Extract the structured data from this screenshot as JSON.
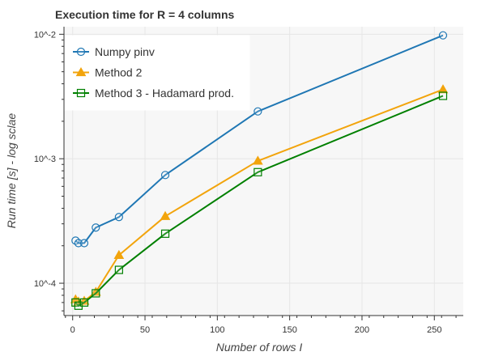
{
  "chart_data": {
    "type": "line",
    "title": "Execution time for R = 4 columns",
    "xlabel": "Number of rows I",
    "ylabel": "Run time [s] - log sclae",
    "xlim": [
      -6,
      270
    ],
    "ylim": [
      5.5e-05,
      0.0115
    ],
    "y_scale": "log",
    "x_ticks": [
      0,
      50,
      100,
      150,
      200,
      250
    ],
    "x_tick_labels": [
      "0",
      "50",
      "100",
      "150",
      "200",
      "250"
    ],
    "y_ticks": [
      0.0001,
      0.001,
      0.01
    ],
    "y_tick_labels": [
      "10^-4",
      "10^-3",
      "10^-2"
    ],
    "grid": true,
    "legend_position": "top-left",
    "series": [
      {
        "name": "Numpy pinv",
        "color": "#1f77b4",
        "marker": "circle",
        "x": [
          2,
          4,
          8,
          16,
          32,
          64,
          128,
          256
        ],
        "y": [
          0.00022,
          0.00021,
          0.00021,
          0.00028,
          0.00034,
          0.00074,
          0.0024,
          0.0098
        ]
      },
      {
        "name": "Method 2",
        "color": "#f2a40c",
        "marker": "triangle",
        "x": [
          2,
          4,
          8,
          16,
          32,
          64,
          128,
          256
        ],
        "y": [
          7.4e-05,
          7.1e-05,
          7.2e-05,
          8.5e-05,
          0.000168,
          0.000345,
          0.00096,
          0.0036
        ]
      },
      {
        "name": "Method 3 - Hadamard prod.",
        "color": "#008000",
        "marker": "square",
        "x": [
          2,
          4,
          8,
          16,
          32,
          64,
          128,
          256
        ],
        "y": [
          7e-05,
          6.6e-05,
          7e-05,
          8.3e-05,
          0.000128,
          0.00025,
          0.00078,
          0.0032
        ]
      }
    ]
  }
}
